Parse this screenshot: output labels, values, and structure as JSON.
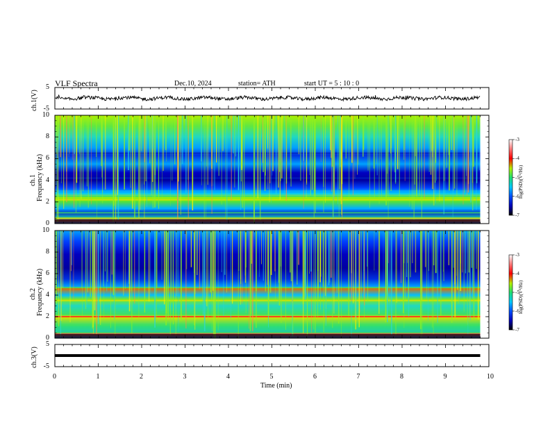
{
  "header": {
    "title": "VLF  Spectra",
    "date": "Dec.10, 2024",
    "station": "station= ATH",
    "start": "start  UT  =    5  : 10 : 0"
  },
  "chart_data": {
    "type": "heatmap",
    "xlabel": "Time  (min)",
    "xlim": [
      0,
      10
    ],
    "xticks": [
      "0",
      "1",
      "2",
      "3",
      "4",
      "5",
      "6",
      "7",
      "8",
      "9",
      "10"
    ],
    "data_end_min": 9.8,
    "panels": [
      {
        "id": "ch1-waveform",
        "type": "line",
        "ylabel": "ch.1(V)",
        "ylim": [
          -5,
          5
        ],
        "yticks": [
          "5",
          "-5"
        ],
        "baseline_v": 0.0
      },
      {
        "id": "ch1-spectrogram",
        "type": "heatmap",
        "ylabel": "ch.1\nFrequency  (kHz)",
        "ylabel_line1": "ch.1",
        "ylabel_line2": "Frequency  (kHz)",
        "ylim": [
          0,
          10
        ],
        "yticks": [
          "0",
          "2",
          "4",
          "6",
          "8",
          "10"
        ],
        "colorbar": {
          "label": "log(PSD)(V²/Hz)",
          "range": [
            -7,
            -3
          ],
          "ticks": [
            "-3",
            "-4",
            "-5",
            "-6",
            "-7"
          ]
        },
        "bands_khz": [
          {
            "f": 0.5,
            "level": -4.5
          },
          {
            "f": 1.0,
            "level": -5.0
          },
          {
            "f": 1.4,
            "level": -5.5
          },
          {
            "f": 2.2,
            "level": -4.6
          },
          {
            "f": 2.5,
            "level": -5.0
          },
          {
            "f": 3.0,
            "level": -5.6
          },
          {
            "f": 4.2,
            "level": -6.4
          },
          {
            "f": 6.5,
            "level": -6.2
          }
        ]
      },
      {
        "id": "ch2-spectrogram",
        "type": "heatmap",
        "ylabel_line1": "ch.2",
        "ylabel_line2": "Frequency  (kHz)",
        "ylim": [
          0,
          10
        ],
        "yticks": [
          "0",
          "2",
          "4",
          "6",
          "8",
          "10"
        ],
        "colorbar": {
          "label": "log(PSD)(V²/Hz)",
          "range": [
            -7,
            -3
          ],
          "ticks": [
            "-3",
            "-4",
            "-5",
            "-6",
            "-7"
          ]
        },
        "bands_khz": [
          {
            "f": 2.0,
            "level": -3.8
          },
          {
            "f": 3.5,
            "level": -4.4
          },
          {
            "f": 4.7,
            "level": -4.8
          },
          {
            "f": 1.2,
            "level": -5.2
          },
          {
            "f": 0.5,
            "level": -5.0
          }
        ]
      },
      {
        "id": "ch3-waveform",
        "type": "line",
        "ylabel": "ch.3(V)",
        "ylim": [
          -5,
          5
        ],
        "yticks": [
          "5",
          "-5"
        ],
        "baseline_v": 0.0
      }
    ]
  }
}
